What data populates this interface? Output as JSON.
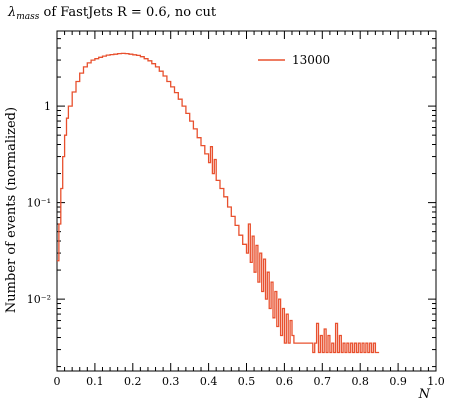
{
  "chart_data": {
    "type": "line",
    "title": "of FastJets R = 0.6, no cut",
    "title_symbol": "λ",
    "title_symbol_sub": "mass",
    "xlabel": "N",
    "ylabel": "Number of events (normalized)",
    "xlim": [
      0,
      1.0
    ],
    "ylim": [
      0.0018,
      6
    ],
    "yscale": "log",
    "xticks": [
      0,
      0.1,
      0.2,
      0.3,
      0.4,
      0.5,
      0.6,
      0.7,
      0.8,
      0.9,
      1.0
    ],
    "xtick_labels": [
      "0",
      "0.1",
      "0.2",
      "0.3",
      "0.4",
      "0.5",
      "0.6",
      "0.7",
      "0.8",
      "0.9",
      "1.0"
    ],
    "yticks": [
      0.01,
      0.1,
      1
    ],
    "ytick_labels": [
      "10⁻²",
      "10⁻¹",
      "1"
    ],
    "legend_position": "top-right",
    "color": "#e8502e",
    "series": [
      {
        "name": "13000",
        "style": "step",
        "x": [
          0.0,
          0.005,
          0.01,
          0.015,
          0.02,
          0.025,
          0.03,
          0.04,
          0.05,
          0.06,
          0.07,
          0.08,
          0.09,
          0.1,
          0.11,
          0.12,
          0.13,
          0.14,
          0.15,
          0.16,
          0.17,
          0.18,
          0.19,
          0.2,
          0.21,
          0.22,
          0.23,
          0.24,
          0.25,
          0.26,
          0.27,
          0.28,
          0.29,
          0.3,
          0.31,
          0.32,
          0.33,
          0.34,
          0.35,
          0.36,
          0.37,
          0.38,
          0.39,
          0.4,
          0.405,
          0.41,
          0.415,
          0.42,
          0.43,
          0.44,
          0.45,
          0.46,
          0.47,
          0.48,
          0.49,
          0.5,
          0.505,
          0.51,
          0.515,
          0.52,
          0.525,
          0.53,
          0.535,
          0.54,
          0.545,
          0.55,
          0.555,
          0.56,
          0.565,
          0.57,
          0.575,
          0.58,
          0.585,
          0.59,
          0.595,
          0.6,
          0.605,
          0.61,
          0.615,
          0.62,
          0.625,
          0.63,
          0.64,
          0.65,
          0.66,
          0.67,
          0.675,
          0.68,
          0.685,
          0.69,
          0.695,
          0.7,
          0.705,
          0.71,
          0.715,
          0.72,
          0.725,
          0.73,
          0.735,
          0.74,
          0.745,
          0.75,
          0.755,
          0.76,
          0.765,
          0.77,
          0.775,
          0.78,
          0.785,
          0.79,
          0.795,
          0.8,
          0.805,
          0.81,
          0.815,
          0.82,
          0.825,
          0.83,
          0.835,
          0.84,
          0.845
        ],
        "y": [
          0.025,
          0.06,
          0.14,
          0.3,
          0.5,
          0.75,
          1.0,
          1.4,
          1.8,
          2.2,
          2.55,
          2.8,
          3.0,
          3.1,
          3.2,
          3.3,
          3.38,
          3.42,
          3.45,
          3.5,
          3.52,
          3.5,
          3.45,
          3.4,
          3.35,
          3.25,
          3.1,
          2.95,
          2.75,
          2.55,
          2.3,
          2.05,
          1.8,
          1.58,
          1.38,
          1.18,
          1.0,
          0.84,
          0.7,
          0.58,
          0.47,
          0.39,
          0.32,
          0.26,
          0.38,
          0.2,
          0.28,
          0.17,
          0.14,
          0.115,
          0.09,
          0.072,
          0.058,
          0.046,
          0.037,
          0.03,
          0.06,
          0.024,
          0.045,
          0.019,
          0.036,
          0.015,
          0.03,
          0.012,
          0.026,
          0.01,
          0.019,
          0.008,
          0.015,
          0.0064,
          0.012,
          0.0052,
          0.01,
          0.0042,
          0.008,
          0.0035,
          0.007,
          0.0035,
          0.006,
          0.0042,
          0.0035,
          0.0035,
          0.0035,
          0.0035,
          0.0035,
          0.0035,
          0.0028,
          0.0035,
          0.0056,
          0.0028,
          0.0042,
          0.0028,
          0.0049,
          0.0028,
          0.0042,
          0.0028,
          0.0035,
          0.0028,
          0.0056,
          0.0028,
          0.0042,
          0.0028,
          0.0035,
          0.0028,
          0.0035,
          0.0028,
          0.0035,
          0.0028,
          0.0035,
          0.0028,
          0.0035,
          0.0028,
          0.0035,
          0.0028,
          0.0035,
          0.0028,
          0.0035,
          0.0028,
          0.0035,
          0.0028,
          0.0028
        ]
      }
    ]
  }
}
